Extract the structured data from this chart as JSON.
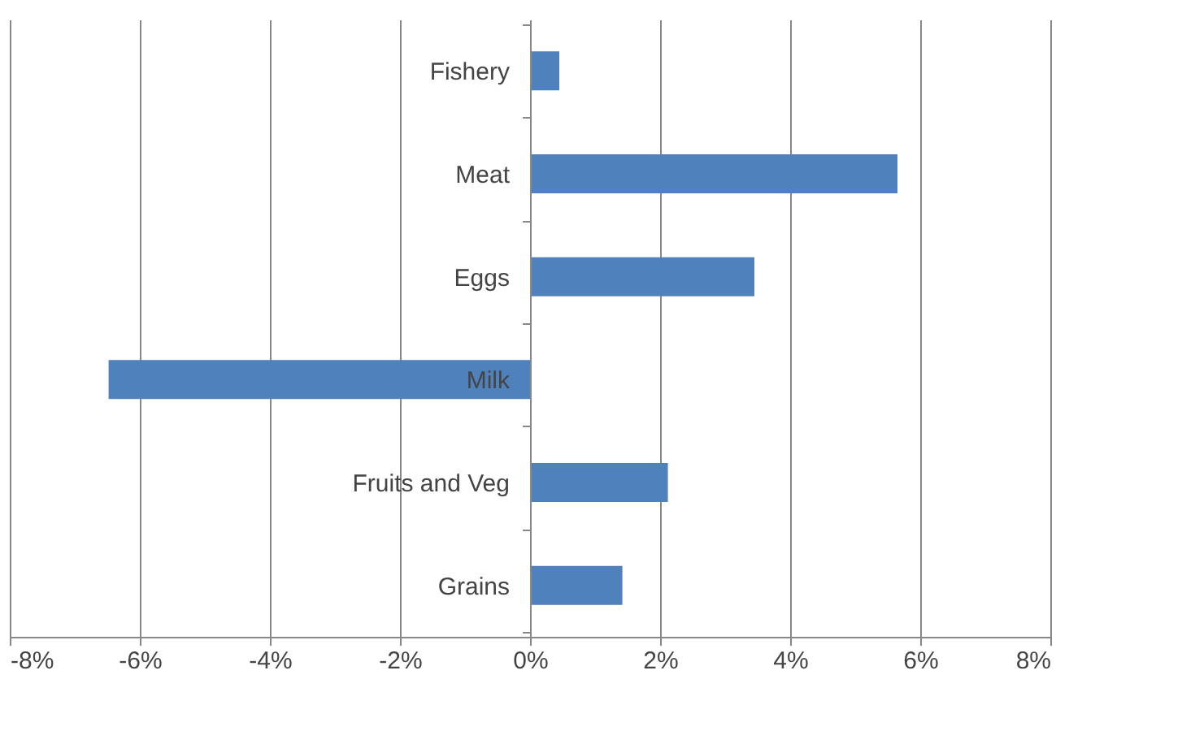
{
  "chart_data": {
    "type": "bar",
    "orientation": "horizontal",
    "categories": [
      "Fishery",
      "Meat",
      "Eggs",
      "Milk",
      "Fruits and Veg",
      "Grains"
    ],
    "values": [
      0.45,
      5.65,
      3.45,
      -6.48,
      2.12,
      1.42
    ],
    "color": "#4f81bd",
    "xlim": [
      -8,
      8
    ],
    "xticks": [
      {
        "value": -8,
        "label": "-8%"
      },
      {
        "value": -6,
        "label": "-6%"
      },
      {
        "value": -4,
        "label": "-4%"
      },
      {
        "value": -2,
        "label": "-2%"
      },
      {
        "value": 0,
        "label": "0%"
      },
      {
        "value": 2,
        "label": "2%"
      },
      {
        "value": 4,
        "label": "4%"
      },
      {
        "value": 6,
        "label": "6%"
      },
      {
        "value": 8,
        "label": "8%"
      }
    ],
    "grid": "x"
  }
}
